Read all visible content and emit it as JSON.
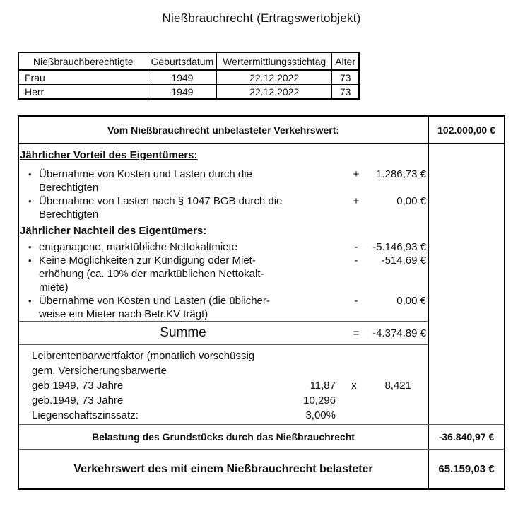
{
  "title": "Nießbrauchrecht (Ertragswertobjekt)",
  "persons_table": {
    "headers": [
      "Nießbrauchberechtigte",
      "Geburtsdatum",
      "Wertermittlungsstichtag",
      "Alter"
    ],
    "rows": [
      [
        "Frau",
        "1949",
        "22.12.2022",
        "73"
      ],
      [
        "Herr",
        "1949",
        "22.12.2022",
        "73"
      ]
    ]
  },
  "valuation": {
    "unencumbered_label": "Vom Nießbrauchrecht unbelasteter Verkehrswert:",
    "unencumbered_value": "102.000,00 €",
    "advantage_heading": "Jährlicher Vorteil des Eigentümers:",
    "bullet": "•",
    "advantage_items": [
      {
        "line1": "Übernahme von Kosten und Lasten durch die",
        "line2": "Berechtigten",
        "op": "+",
        "value": "1.286,73 €"
      },
      {
        "line1": "Übernahme von Lasten nach § 1047 BGB durch die",
        "line2": "Berechtigten",
        "op": "+",
        "value": "0,00 €"
      }
    ],
    "disadvantage_heading": "Jährlicher Nachteil des Eigentümers:",
    "disadvantage_items": [
      {
        "line1": "entganagene, marktübliche Nettokaltmiete",
        "op": "-",
        "value": "-5.146,93 €"
      },
      {
        "line1": "Keine Möglichkeiten zur Kündigung oder Miet-",
        "line2": "erhöhung (ca. 10% der marktüblichen Nettokalt-",
        "line3": "miete)",
        "op": "-",
        "value": "-514,69 €"
      },
      {
        "line1": "Übernahme von Kosten und Lasten (die üblicher-",
        "line2": "weise ein Mieter nach Betr.KV trägt)",
        "op": "-",
        "value": "0,00 €"
      }
    ],
    "sum_label": "Summe",
    "sum_op": "=",
    "sum_value": "-4.374,89 €",
    "factor": {
      "intro_line1": "Leibrentenbarwertfaktor (monatlich vorschüssig",
      "intro_line2": "gem. Versicherungsbarwerte",
      "rows": [
        {
          "label": "geb 1949, 73 Jahre",
          "num": "11,87",
          "op": "x",
          "value": "8,421"
        },
        {
          "label": "geb.1949, 73 Jahre",
          "num": "10,296",
          "op": "",
          "value": ""
        },
        {
          "label": "Liegenschaftszinssatz:",
          "num": "3,00%",
          "op": "",
          "value": ""
        }
      ]
    },
    "encumbrance_label": "Belastung des Grundstücks durch das Nießbrauchrecht",
    "encumbrance_value": "-36.840,97 €",
    "result_label": "Verkehrswert des mit einem Nießbrauchrecht belasteter",
    "result_value": "65.159,03 €"
  }
}
